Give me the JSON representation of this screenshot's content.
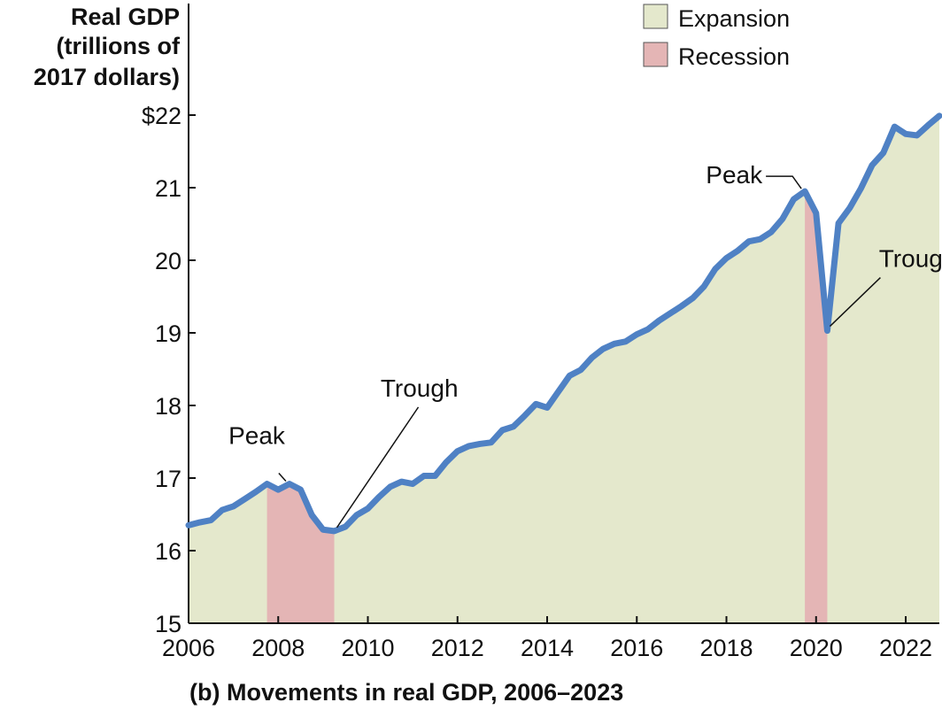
{
  "chart_data": {
    "type": "area",
    "title": "",
    "caption": "(b) Movements in real GDP, 2006–2023",
    "ylabel": [
      "Real GDP",
      "(trillions of",
      "2017 dollars)"
    ],
    "xlabel": "",
    "xlim": [
      2006,
      2022.75
    ],
    "ylim": [
      15,
      22
    ],
    "x_ticks": [
      2006,
      2008,
      2010,
      2012,
      2014,
      2016,
      2018,
      2020,
      2022
    ],
    "y_ticks": [
      15,
      16,
      17,
      18,
      19,
      20,
      21,
      22
    ],
    "y_tick_labels": [
      "15",
      "16",
      "17",
      "18",
      "19",
      "20",
      "21",
      "$22"
    ],
    "grid": false,
    "legend": {
      "position": "top-right",
      "entries": [
        {
          "label": "Expansion",
          "color": "#e4e8cc"
        },
        {
          "label": "Recession",
          "color": "#e4b5b5"
        }
      ]
    },
    "recessions": [
      {
        "start": 2007.75,
        "end": 2009.25
      },
      {
        "start": 2019.75,
        "end": 2020.25
      }
    ],
    "annotations": [
      {
        "label": "Peak",
        "x": 2008.25,
        "y": 16.92
      },
      {
        "label": "Trough",
        "x": 2009.25,
        "y": 16.27
      },
      {
        "label": "Peak",
        "x": 2019.75,
        "y": 20.95
      },
      {
        "label": "Trough",
        "x": 2020.25,
        "y": 19.03
      }
    ],
    "series": [
      {
        "line_color": "#4f81c4",
        "fill_color": "#e4e8cc",
        "x": [
          2006,
          2006.25,
          2006.5,
          2006.75,
          2007,
          2007.25,
          2007.5,
          2007.75,
          2008,
          2008.25,
          2008.5,
          2008.75,
          2009,
          2009.25,
          2009.5,
          2009.75,
          2010,
          2010.25,
          2010.5,
          2010.75,
          2011,
          2011.25,
          2011.5,
          2011.75,
          2012,
          2012.25,
          2012.5,
          2012.75,
          2013,
          2013.25,
          2013.5,
          2013.75,
          2014,
          2014.25,
          2014.5,
          2014.75,
          2015,
          2015.25,
          2015.5,
          2015.75,
          2016,
          2016.25,
          2016.5,
          2016.75,
          2017,
          2017.25,
          2017.5,
          2017.75,
          2018,
          2018.25,
          2018.5,
          2018.75,
          2019,
          2019.25,
          2019.5,
          2019.75,
          2020,
          2020.25,
          2020.5,
          2020.75,
          2021,
          2021.25,
          2021.5,
          2021.75,
          2022,
          2022.25,
          2022.5,
          2022.75
        ],
        "values": [
          16.35,
          16.39,
          16.42,
          16.56,
          16.61,
          16.71,
          16.81,
          16.92,
          16.84,
          16.92,
          16.84,
          16.49,
          16.29,
          16.27,
          16.33,
          16.49,
          16.58,
          16.74,
          16.88,
          16.95,
          16.92,
          17.03,
          17.03,
          17.22,
          17.37,
          17.44,
          17.47,
          17.49,
          17.66,
          17.71,
          17.86,
          18.02,
          17.97,
          18.19,
          18.41,
          18.49,
          18.66,
          18.78,
          18.85,
          18.88,
          18.98,
          19.05,
          19.17,
          19.27,
          19.37,
          19.48,
          19.64,
          19.88,
          20.03,
          20.13,
          20.26,
          20.29,
          20.39,
          20.57,
          20.84,
          20.95,
          20.65,
          19.03,
          20.51,
          20.72,
          20.99,
          21.31,
          21.48,
          21.84,
          21.74,
          21.72,
          21.86,
          21.99
        ]
      }
    ]
  }
}
